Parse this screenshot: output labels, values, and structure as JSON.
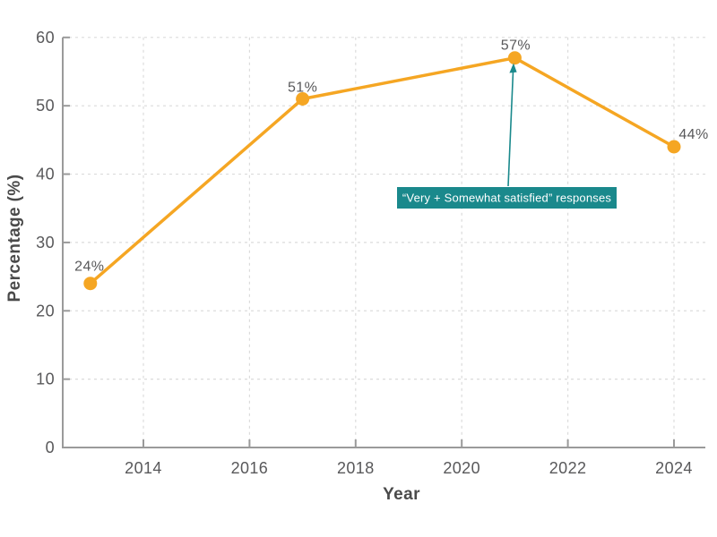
{
  "chart_data": {
    "type": "line",
    "title": "",
    "xlabel": "Year",
    "ylabel": "Percentage (%)",
    "x": [
      2013,
      2017,
      2021,
      2024
    ],
    "values": [
      24,
      51,
      57,
      44
    ],
    "point_labels": [
      "24%",
      "51%",
      "57%",
      "44%"
    ],
    "x_ticks": [
      2014,
      2016,
      2018,
      2020,
      2022,
      2024
    ],
    "y_ticks": [
      0,
      10,
      20,
      30,
      40,
      50,
      60
    ],
    "xlim": [
      2012.5,
      2024.6
    ],
    "ylim": [
      0,
      60
    ],
    "grid": true,
    "legend_position": "none",
    "annotation": {
      "text": "“Very + Somewhat satisfied” responses",
      "target_x": 2021,
      "target_y": 57
    },
    "colors": {
      "line": "#F5A623",
      "marker": "#F5A623",
      "annotation_bg": "#1A898C",
      "annotation_text": "#FFFFFF",
      "arrow": "#1A898C",
      "axis": "#9A9A9A",
      "grid": "#DBDBDB",
      "tick_text": "#58585A",
      "axis_title": "#4A4A4A",
      "label_text": "#58585A"
    }
  }
}
